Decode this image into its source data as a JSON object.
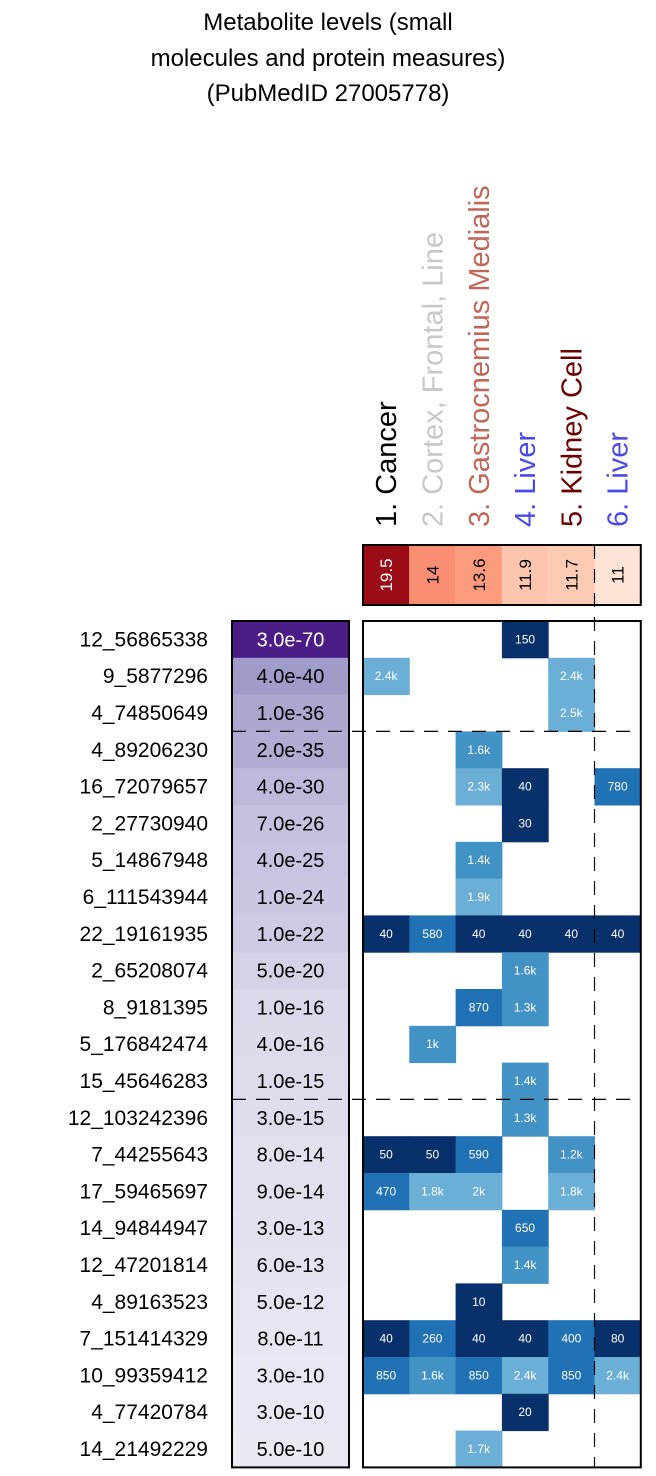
{
  "title_lines": [
    "Metabolite levels (small",
    "molecules and protein measures)",
    "(PubMedID 27005778)"
  ],
  "chart_data": {
    "type": "heatmap",
    "title": "Metabolite levels (small molecules and protein measures) (PubMedID 27005778)",
    "columns": [
      {
        "label": "1. Cancer",
        "color": "#000000",
        "rank_value": "19.5",
        "rank_color": "#9b0d16",
        "rank_text_color": "#ffffff"
      },
      {
        "label": "2. Cortex, Frontal, Line",
        "color": "#c8c8c8",
        "rank_value": "14",
        "rank_color": "#f98e72",
        "rank_text_color": "#000000"
      },
      {
        "label": "3. Gastrocnemius Medialis",
        "color": "#c0675a",
        "rank_value": "13.6",
        "rank_color": "#fb9a7c",
        "rank_text_color": "#000000"
      },
      {
        "label": "4. Liver",
        "color": "#4a4ae6",
        "rank_value": "11.9",
        "rank_color": "#fcc6ae",
        "rank_text_color": "#000000"
      },
      {
        "label": "5. Kidney Cell",
        "color": "#6b0000",
        "rank_value": "11.7",
        "rank_color": "#fdcab4",
        "rank_text_color": "#000000"
      },
      {
        "label": "6. Liver",
        "color": "#4a4ae6",
        "rank_value": "11",
        "rank_color": "#fee2d6",
        "rank_text_color": "#000000"
      }
    ],
    "rows": [
      {
        "label": "12_56865338",
        "pvalue": "3.0e-70",
        "p_color": "#4b1b86",
        "p_text": "#ffffff",
        "cells": [
          "",
          "",
          "",
          "150",
          "",
          ""
        ]
      },
      {
        "label": "9_5877296",
        "pvalue": "4.0e-40",
        "p_color": "#a19bc9",
        "p_text": "#000000",
        "cells": [
          "2.4k",
          "",
          "",
          "",
          "2.4k",
          ""
        ]
      },
      {
        "label": "4_74850649",
        "pvalue": "1.0e-36",
        "p_color": "#aba7cf",
        "p_text": "#000000",
        "cells": [
          "",
          "",
          "",
          "",
          "2.5k",
          ""
        ]
      },
      {
        "label": "4_89206230",
        "pvalue": "2.0e-35",
        "p_color": "#b1acd2",
        "p_text": "#000000",
        "cells": [
          "",
          "",
          "1.6k",
          "",
          "",
          ""
        ]
      },
      {
        "label": "16_72079657",
        "pvalue": "4.0e-30",
        "p_color": "#bdb9db",
        "p_text": "#000000",
        "cells": [
          "",
          "",
          "2.3k",
          "40",
          "",
          "780"
        ]
      },
      {
        "label": "2_27730940",
        "pvalue": "7.0e-26",
        "p_color": "#c4c2df",
        "p_text": "#000000",
        "cells": [
          "",
          "",
          "",
          "30",
          "",
          ""
        ]
      },
      {
        "label": "5_14867948",
        "pvalue": "4.0e-25",
        "p_color": "#c6c4e0",
        "p_text": "#000000",
        "cells": [
          "",
          "",
          "1.4k",
          "",
          "",
          ""
        ]
      },
      {
        "label": "6_111543944",
        "pvalue": "1.0e-24",
        "p_color": "#c9c7e2",
        "p_text": "#000000",
        "cells": [
          "",
          "",
          "1.9k",
          "",
          "",
          ""
        ]
      },
      {
        "label": "22_19161935",
        "pvalue": "1.0e-22",
        "p_color": "#cdcbe4",
        "p_text": "#000000",
        "cells": [
          "40",
          "580",
          "40",
          "40",
          "40",
          "40"
        ]
      },
      {
        "label": "2_65208074",
        "pvalue": "5.0e-20",
        "p_color": "#d3d2e7",
        "p_text": "#000000",
        "cells": [
          "",
          "",
          "",
          "1.6k",
          "",
          ""
        ]
      },
      {
        "label": "8_9181395",
        "pvalue": "1.0e-16",
        "p_color": "#dad9eb",
        "p_text": "#000000",
        "cells": [
          "",
          "",
          "870",
          "1.3k",
          "",
          ""
        ]
      },
      {
        "label": "5_176842474",
        "pvalue": "4.0e-16",
        "p_color": "#dcdbec",
        "p_text": "#000000",
        "cells": [
          "",
          "1k",
          "",
          "",
          "",
          ""
        ]
      },
      {
        "label": "15_45646283",
        "pvalue": "1.0e-15",
        "p_color": "#dddcec",
        "p_text": "#000000",
        "cells": [
          "",
          "",
          "",
          "1.4k",
          "",
          ""
        ]
      },
      {
        "label": "12_103242396",
        "pvalue": "3.0e-15",
        "p_color": "#dedded",
        "p_text": "#000000",
        "cells": [
          "",
          "",
          "",
          "1.3k",
          "",
          ""
        ]
      },
      {
        "label": "7_44255643",
        "pvalue": "8.0e-14",
        "p_color": "#e1e0ee",
        "p_text": "#000000",
        "cells": [
          "50",
          "50",
          "590",
          "",
          "1.2k",
          ""
        ]
      },
      {
        "label": "17_59465697",
        "pvalue": "9.0e-14",
        "p_color": "#e1e0ee",
        "p_text": "#000000",
        "cells": [
          "470",
          "1.8k",
          "2k",
          "",
          "1.8k",
          ""
        ]
      },
      {
        "label": "14_94844947",
        "pvalue": "3.0e-13",
        "p_color": "#e2e1ef",
        "p_text": "#000000",
        "cells": [
          "",
          "",
          "",
          "650",
          "",
          ""
        ]
      },
      {
        "label": "12_47201814",
        "pvalue": "6.0e-13",
        "p_color": "#e3e2ef",
        "p_text": "#000000",
        "cells": [
          "",
          "",
          "",
          "1.4k",
          "",
          ""
        ]
      },
      {
        "label": "4_89163523",
        "pvalue": "5.0e-12",
        "p_color": "#e5e4f0",
        "p_text": "#000000",
        "cells": [
          "",
          "",
          "10",
          "",
          "",
          ""
        ]
      },
      {
        "label": "7_151414329",
        "pvalue": "8.0e-11",
        "p_color": "#e7e6f1",
        "p_text": "#000000",
        "cells": [
          "40",
          "260",
          "40",
          "40",
          "400",
          "80"
        ]
      },
      {
        "label": "10_99359412",
        "pvalue": "3.0e-10",
        "p_color": "#e8e8f2",
        "p_text": "#000000",
        "cells": [
          "850",
          "1.6k",
          "850",
          "2.4k",
          "850",
          "2.4k"
        ]
      },
      {
        "label": "4_77420784",
        "pvalue": "3.0e-10",
        "p_color": "#e8e8f2",
        "p_text": "#000000",
        "cells": [
          "",
          "",
          "",
          "20",
          "",
          ""
        ]
      },
      {
        "label": "14_21492229",
        "pvalue": "5.0e-10",
        "p_color": "#e9e9f2",
        "p_text": "#000000",
        "cells": [
          "",
          "",
          "1.7k",
          "",
          "",
          ""
        ]
      }
    ],
    "row_separators_after": [
      2,
      12
    ],
    "column_separator_after": 4,
    "value_colors": {
      "low": "#08306b",
      "mid": "#2171b5",
      "mid_light": "#4292c6",
      "high": "#6baed6"
    }
  }
}
